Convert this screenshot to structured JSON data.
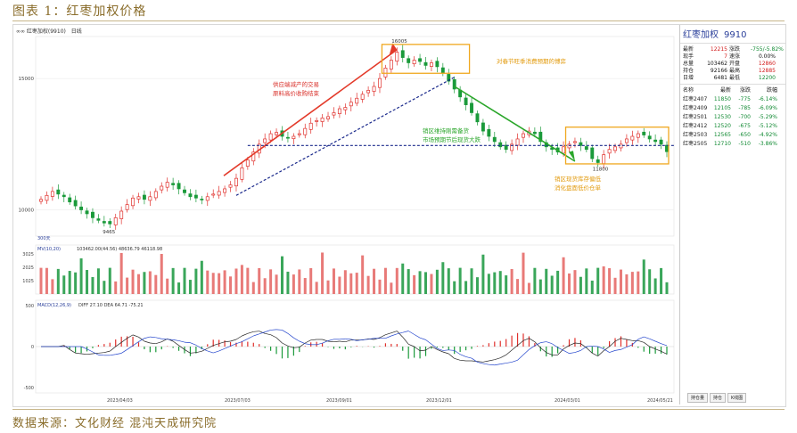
{
  "header": {
    "title": "图表 1：红枣加权价格"
  },
  "footer": {
    "source": "数据来源：文化财经 混沌天成研究院"
  },
  "toolbar": {
    "items": [
      "∞∞ 红枣加权(9910)",
      "日线"
    ]
  },
  "quote": {
    "name": "红枣加权",
    "code": "9910",
    "fields": [
      [
        "最新",
        "12215",
        "涨跌",
        "-755/-5.82%"
      ],
      [
        "现手",
        "7",
        "速涨",
        "0.00%"
      ],
      [
        "总量",
        "103462",
        "开盘",
        "12860"
      ],
      [
        "持仓",
        "92166",
        "最高",
        "12885"
      ],
      [
        "日增",
        "6481",
        "最低",
        "12200"
      ]
    ],
    "contract_header": [
      "名称",
      "最新",
      "涨跌",
      "跌幅"
    ],
    "contracts": [
      [
        "红枣2407",
        "11850",
        "-775",
        "-6.14%"
      ],
      [
        "红枣2409",
        "12105",
        "-785",
        "-6.09%"
      ],
      [
        "红枣2501",
        "12530",
        "-700",
        "-5.29%"
      ],
      [
        "红枣2412",
        "12520",
        "-675",
        "-5.12%"
      ],
      [
        "红枣2503",
        "12565",
        "-650",
        "-4.92%"
      ],
      [
        "红枣2505",
        "12710",
        "-510",
        "-3.86%"
      ]
    ],
    "tabs": [
      "持仓量",
      "持仓",
      "K线图"
    ]
  },
  "chart_data": {
    "type": "candlestick",
    "title": "红枣加权(9910) 日线",
    "x_ticks": [
      "2023/04/03",
      "2023/07/03",
      "2023/09/01",
      "2023/12/01",
      "2024/03/01",
      "2024/05/21"
    ],
    "y_ticks": [
      "15000",
      "10000"
    ],
    "ylim": [
      9000,
      16600
    ],
    "high_label": "16005",
    "low_label": "9465",
    "mid_low_label": "11800",
    "volume_label": "300天",
    "annotations": [
      {
        "text": "供应端减产的交易",
        "color": "#d9302a"
      },
      {
        "text": "原料高价收购结束",
        "color": "#d9302a"
      },
      {
        "text": "对春节旺季消费预期的博弈",
        "color": "#e29a0c"
      },
      {
        "text": "销区维持刚需备货",
        "color": "#2aa62a"
      },
      {
        "text": "市场预期节后现货大跌",
        "color": "#2aa62a"
      },
      {
        "text": "销区现货库存偏低",
        "color": "#e29a0c"
      },
      {
        "text": "消化盘面低价仓单",
        "color": "#e29a0c"
      }
    ],
    "price_series": [
      10400,
      10550,
      10700,
      10600,
      10500,
      10300,
      10150,
      10000,
      9850,
      9700,
      9600,
      9500,
      9465,
      9700,
      9950,
      10200,
      10450,
      10500,
      10400,
      10500,
      10700,
      10900,
      11050,
      10950,
      10800,
      10650,
      10500,
      10450,
      10400,
      10500,
      10600,
      10700,
      10800,
      10950,
      11200,
      11600,
      11900,
      12200,
      12500,
      12700,
      12900,
      12950,
      12800,
      12750,
      12800,
      12900,
      13100,
      13300,
      13400,
      13500,
      13550,
      13700,
      13850,
      13900,
      14100,
      14250,
      14400,
      14550,
      14700,
      15000,
      15400,
      15700,
      16005,
      15800,
      15600,
      15700,
      15650,
      15500,
      15600,
      15450,
      15200,
      14900,
      14600,
      14300,
      14000,
      13700,
      13350,
      13000,
      12800,
      12600,
      12400,
      12300,
      12500,
      12700,
      12900,
      13000,
      12900,
      12600,
      12400,
      12300,
      12200,
      12400,
      12500,
      12600,
      12450,
      12300,
      11950,
      11800,
      12100,
      12300,
      12400,
      12500,
      12700,
      12800,
      12900,
      12850,
      12700,
      12600,
      12500,
      12215
    ],
    "volume": {
      "name": "MV(10,20)",
      "text": "103462.00(44.56)  48636.79  46118.98",
      "y_ticks": [
        "3025",
        "2025",
        "1025"
      ]
    },
    "macd": {
      "name": "MACD(12,26,9)",
      "text": "DIFF 27.10  DEA 64.71  -75.21",
      "y_ticks": [
        "500",
        "0",
        "-500"
      ]
    }
  }
}
